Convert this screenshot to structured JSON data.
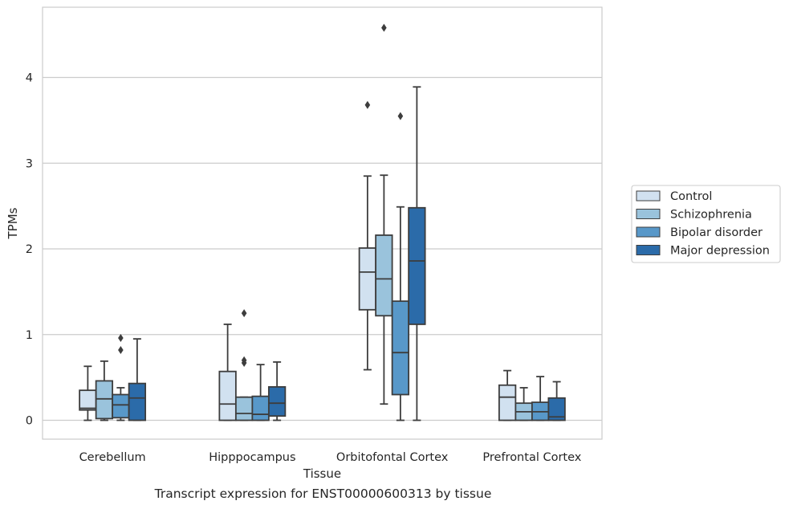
{
  "caption": "Transcript expression for ENST00000600313 by tissue",
  "chart_data": {
    "type": "boxplot",
    "xlabel": "Tissue",
    "ylabel": "TPMs",
    "ylim": [
      -0.22,
      4.82
    ],
    "yticks": [
      0,
      1,
      2,
      3,
      4
    ],
    "grid": "horizontal",
    "legend_placement": "right",
    "categories": [
      "Cerebellum",
      "Hipppocampus",
      "Orbitofontal Cortex",
      "Prefrontal Cortex"
    ],
    "series": [
      {
        "name": "Control",
        "color": "#d1e1f0",
        "boxes": [
          {
            "whisker_low": 0.0,
            "q1": 0.12,
            "median": 0.14,
            "q3": 0.35,
            "whisker_high": 0.63,
            "outliers": []
          },
          {
            "whisker_low": 0.0,
            "q1": 0.0,
            "median": 0.19,
            "q3": 0.57,
            "whisker_high": 1.12,
            "outliers": []
          },
          {
            "whisker_low": 0.59,
            "q1": 1.29,
            "median": 1.73,
            "q3": 2.01,
            "whisker_high": 2.85,
            "outliers": [
              3.68
            ]
          },
          {
            "whisker_low": 0.0,
            "q1": 0.0,
            "median": 0.27,
            "q3": 0.41,
            "whisker_high": 0.58,
            "outliers": []
          }
        ]
      },
      {
        "name": "Schizophrenia",
        "color": "#9ac3dc",
        "boxes": [
          {
            "whisker_low": 0.0,
            "q1": 0.02,
            "median": 0.25,
            "q3": 0.46,
            "whisker_high": 0.69,
            "outliers": []
          },
          {
            "whisker_low": 0.0,
            "q1": 0.0,
            "median": 0.08,
            "q3": 0.27,
            "whisker_high": 0.27,
            "outliers": [
              0.67,
              0.7,
              1.25
            ]
          },
          {
            "whisker_low": 0.19,
            "q1": 1.22,
            "median": 1.65,
            "q3": 2.16,
            "whisker_high": 2.86,
            "outliers": [
              4.58
            ]
          },
          {
            "whisker_low": 0.0,
            "q1": 0.0,
            "median": 0.1,
            "q3": 0.2,
            "whisker_high": 0.38,
            "outliers": []
          }
        ]
      },
      {
        "name": "Bipolar disorder",
        "color": "#5898c9",
        "boxes": [
          {
            "whisker_low": 0.0,
            "q1": 0.03,
            "median": 0.18,
            "q3": 0.3,
            "whisker_high": 0.38,
            "outliers": [
              0.82,
              0.96
            ]
          },
          {
            "whisker_low": 0.0,
            "q1": 0.0,
            "median": 0.07,
            "q3": 0.28,
            "whisker_high": 0.65,
            "outliers": []
          },
          {
            "whisker_low": 0.0,
            "q1": 0.3,
            "median": 0.79,
            "q3": 1.39,
            "whisker_high": 2.49,
            "outliers": [
              3.55
            ]
          },
          {
            "whisker_low": 0.0,
            "q1": 0.0,
            "median": 0.1,
            "q3": 0.21,
            "whisker_high": 0.51,
            "outliers": []
          }
        ]
      },
      {
        "name": "Major depression",
        "color": "#2b6ba9",
        "boxes": [
          {
            "whisker_low": 0.0,
            "q1": 0.0,
            "median": 0.26,
            "q3": 0.43,
            "whisker_high": 0.95,
            "outliers": []
          },
          {
            "whisker_low": 0.0,
            "q1": 0.05,
            "median": 0.2,
            "q3": 0.39,
            "whisker_high": 0.68,
            "outliers": []
          },
          {
            "whisker_low": 0.0,
            "q1": 1.12,
            "median": 1.86,
            "q3": 2.48,
            "whisker_high": 3.89,
            "outliers": []
          },
          {
            "whisker_low": 0.0,
            "q1": 0.0,
            "median": 0.04,
            "q3": 0.26,
            "whisker_high": 0.45,
            "outliers": []
          }
        ]
      }
    ]
  }
}
